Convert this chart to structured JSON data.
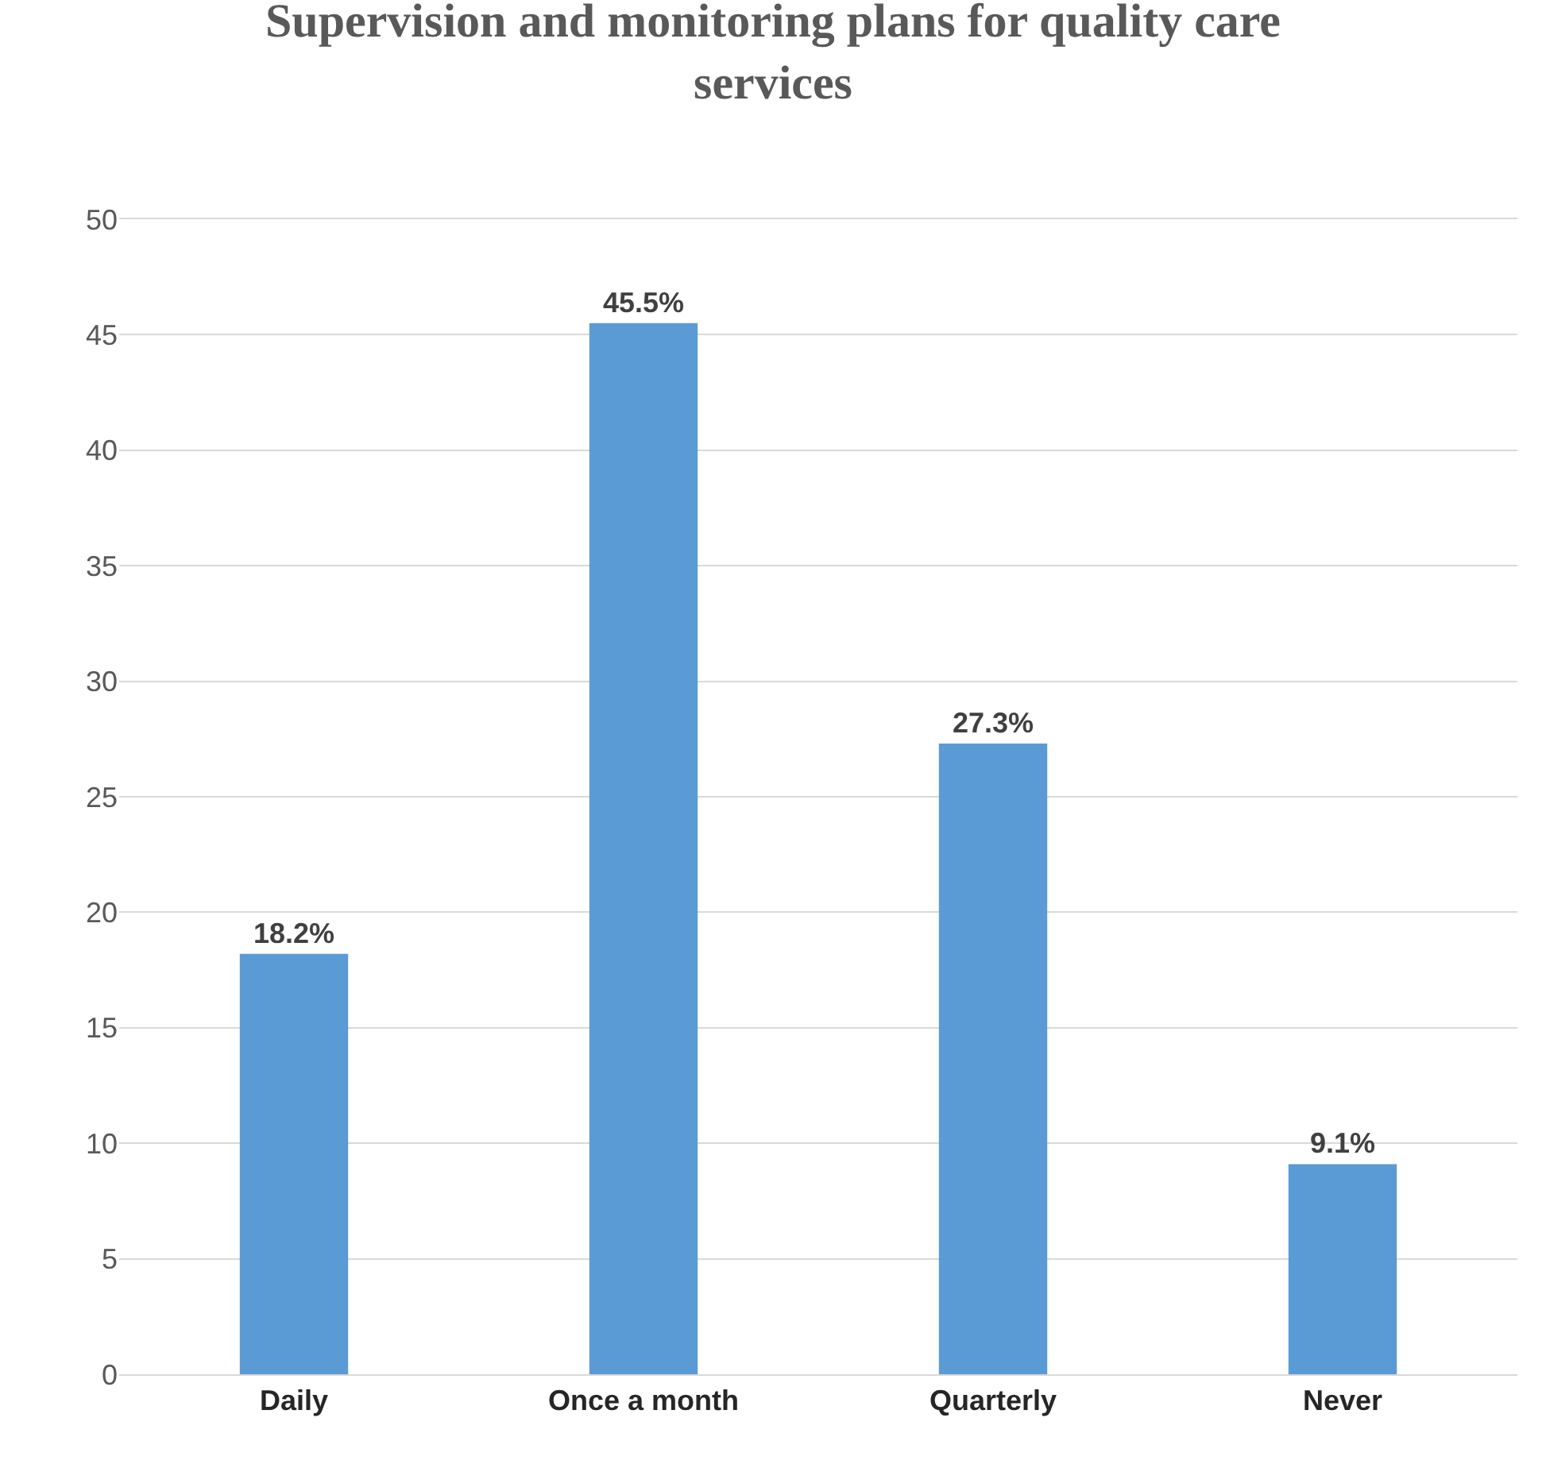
{
  "chart_data": {
    "type": "bar",
    "title": "Supervision and monitoring plans for quality care services",
    "categories": [
      "Daily",
      "Once a month",
      "Quarterly",
      "Never"
    ],
    "values": [
      18.2,
      45.5,
      27.3,
      9.1
    ],
    "value_labels": [
      "18.2%",
      "45.5%",
      "27.3%",
      "9.1%"
    ],
    "color": "#5b9bd5",
    "ylim": [
      0,
      50
    ],
    "yticks": [
      0,
      5,
      10,
      15,
      20,
      25,
      30,
      35,
      40,
      45,
      50
    ],
    "grid": "y"
  }
}
